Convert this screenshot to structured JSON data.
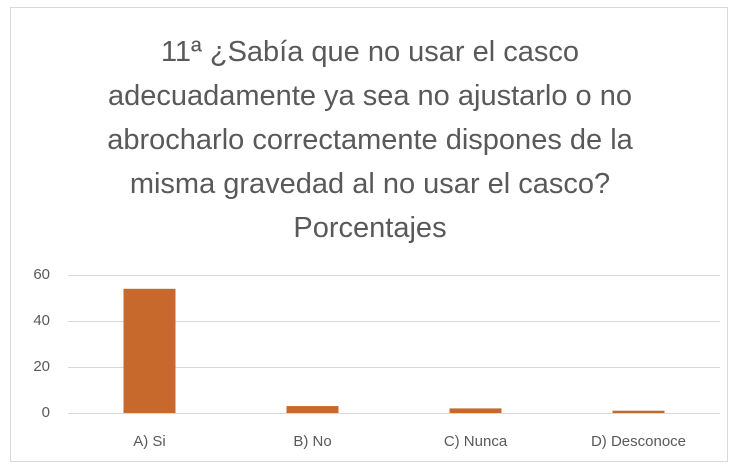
{
  "chart_data": {
    "type": "bar",
    "title": "11ª  ¿Sabía que no usar el casco adecuadamente ya sea no ajustarlo o no abrocharlo correctamente dispones de la misma gravedad al no usar el casco? Porcentajes",
    "categories": [
      "A) Si",
      "B) No",
      "C) Nunca",
      "D) Desconoce"
    ],
    "values": [
      54,
      3,
      2,
      1
    ],
    "color": "#c7692c",
    "ylim": [
      0,
      60
    ],
    "yticks": [
      0,
      20,
      40,
      60
    ],
    "grid": true
  }
}
